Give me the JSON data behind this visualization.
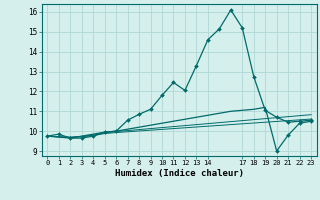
{
  "xlabel": "Humidex (Indice chaleur)",
  "background_color": "#d5efec",
  "grid_color": "#aed8d4",
  "line_color": "#006b6b",
  "xlim": [
    -0.5,
    23.5
  ],
  "ylim": [
    8.75,
    16.4
  ],
  "xtick_positions": [
    0,
    1,
    2,
    3,
    4,
    5,
    6,
    7,
    8,
    9,
    10,
    11,
    12,
    13,
    14,
    17,
    18,
    19,
    20,
    21,
    22,
    23
  ],
  "xtick_labels": [
    "0",
    "1",
    "2",
    "3",
    "4",
    "5",
    "6",
    "7",
    "8",
    "9",
    "10",
    "11",
    "12",
    "13",
    "14",
    "17",
    "18",
    "19",
    "20",
    "21",
    "22",
    "23"
  ],
  "yticks": [
    9,
    10,
    11,
    12,
    13,
    14,
    15,
    16
  ],
  "series1": [
    9.75,
    9.85,
    9.65,
    9.65,
    9.75,
    9.95,
    10.0,
    10.55,
    10.85,
    11.1,
    11.8,
    12.45,
    12.05,
    13.3,
    14.6,
    15.15,
    16.1,
    15.2,
    12.75,
    11.05,
    10.7,
    10.45,
    10.5,
    10.55
  ],
  "series2": [
    9.75,
    9.7,
    9.65,
    9.75,
    9.85,
    9.95,
    10.0,
    10.1,
    10.2,
    10.3,
    10.4,
    10.5,
    10.6,
    10.7,
    10.8,
    10.9,
    11.0,
    11.05,
    11.1,
    11.2,
    9.0,
    9.8,
    10.4,
    10.5
  ],
  "series3": [
    9.75,
    9.72,
    9.7,
    9.74,
    9.8,
    9.92,
    9.98,
    10.03,
    10.08,
    10.13,
    10.18,
    10.23,
    10.28,
    10.33,
    10.38,
    10.43,
    10.48,
    10.53,
    10.58,
    10.63,
    10.68,
    10.73,
    10.78,
    10.83
  ],
  "series4": [
    9.75,
    9.71,
    9.69,
    9.72,
    9.78,
    9.88,
    9.93,
    9.97,
    10.01,
    10.05,
    10.09,
    10.13,
    10.17,
    10.21,
    10.25,
    10.29,
    10.33,
    10.37,
    10.41,
    10.45,
    10.49,
    10.53,
    10.57,
    10.61
  ]
}
